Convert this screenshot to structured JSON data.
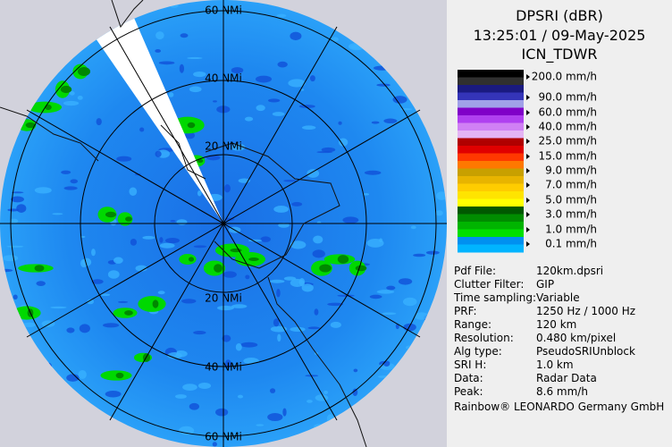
{
  "header": {
    "product": "DPSRI (dBR)",
    "time": "13:25:01 / 09-May-2025",
    "radar": "ICN_TDWR"
  },
  "legend": [
    "200.0 mm/h",
    "90.0 mm/h",
    "60.0 mm/h",
    "40.0 mm/h",
    "25.0 mm/h",
    "15.0 mm/h",
    "9.0 mm/h",
    "7.0 mm/h",
    "5.0 mm/h",
    "3.0 mm/h",
    "1.0 mm/h",
    "0.1 mm/h"
  ],
  "info": [
    {
      "label": "Pdf File:",
      "value": "120km.dpsri"
    },
    {
      "label": "Clutter Filter:",
      "value": "GIP"
    },
    {
      "label": "Time sampling:",
      "value": "Variable"
    },
    {
      "label": "PRF:",
      "value": "1250 Hz / 1000 Hz"
    },
    {
      "label": "Range:",
      "value": "120 km"
    },
    {
      "label": "Resolution:",
      "value": "0.480 km/pixel"
    },
    {
      "label": "Alg type:",
      "value": "PseudoSRIUnblock"
    },
    {
      "label": "SRI H:",
      "value": "1.0 km"
    },
    {
      "label": "Data:",
      "value": "Radar Data"
    },
    {
      "label": "Peak:",
      "value": "8.6 mm/h"
    }
  ],
  "footer": "Rainbow® LEONARDO Germany GmbH",
  "map": {
    "range_labels": [
      "60 NMi",
      "40 NMi",
      "20 NMi",
      "20 NMi",
      "40 NMi",
      "60 NMi"
    ]
  }
}
